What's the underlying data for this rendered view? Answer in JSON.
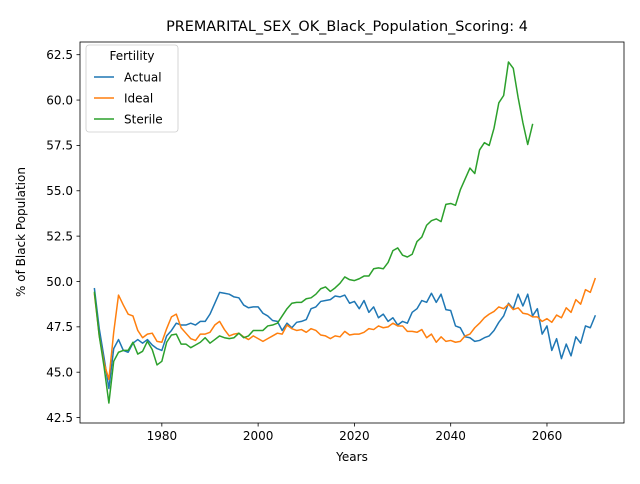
{
  "chart_data": {
    "type": "line",
    "title": "PREMARITAL_SEX_OK_Black_Population_Scoring: 4",
    "xlabel": "Years",
    "ylabel": "% of Black Population",
    "xlim": [
      1963,
      2076
    ],
    "ylim": [
      42.2,
      63.2
    ],
    "xticks": [
      1980,
      2000,
      2020,
      2040,
      2060
    ],
    "xtick_labels": [
      "1980",
      "2000",
      "2020",
      "2040",
      "2060"
    ],
    "yticks": [
      42.5,
      45.0,
      47.5,
      50.0,
      52.5,
      55.0,
      57.5,
      60.0,
      62.5
    ],
    "ytick_labels": [
      "42.5",
      "45.0",
      "47.5",
      "50.0",
      "52.5",
      "55.0",
      "57.5",
      "60.0",
      "62.5"
    ],
    "grid": false,
    "legend": {
      "title": "Fertility",
      "position": "top-left"
    },
    "series": [
      {
        "name": "Actual",
        "color": "#1f77b4",
        "start": 1966,
        "values": [
          49.6,
          47.4,
          45.8,
          44.1,
          46.3,
          46.8,
          46.2,
          46.1,
          46.6,
          46.8,
          46.6,
          46.8,
          46.5,
          46.3,
          46.2,
          47.0,
          47.3,
          47.7,
          47.6,
          47.6,
          47.7,
          47.6,
          47.8,
          47.8,
          48.2,
          48.8,
          49.4,
          49.35,
          49.3,
          49.15,
          49.1,
          48.7,
          48.55,
          48.6,
          48.6,
          48.25,
          48.1,
          47.85,
          47.8,
          47.3,
          47.7,
          47.45,
          47.75,
          47.8,
          47.9,
          48.5,
          48.6,
          48.9,
          48.95,
          49.0,
          49.2,
          49.15,
          49.25,
          48.8,
          48.9,
          48.5,
          48.95,
          48.3,
          48.6,
          48.0,
          48.2,
          47.8,
          48.0,
          47.6,
          47.8,
          47.7,
          48.3,
          48.5,
          48.95,
          48.85,
          49.35,
          48.85,
          49.3,
          48.45,
          48.4,
          47.55,
          47.45,
          46.95,
          46.9,
          46.7,
          46.75,
          46.9,
          47.0,
          47.3,
          47.75,
          48.1,
          48.8,
          48.5,
          49.3,
          48.65,
          49.3,
          48.1,
          48.5,
          47.1,
          47.55,
          46.2,
          46.85,
          45.75,
          46.55,
          45.9,
          46.95,
          46.6,
          47.55,
          47.45,
          48.1
        ]
      },
      {
        "name": "Ideal",
        "color": "#ff7f0e",
        "start": 1966,
        "values": [
          49.3,
          47.0,
          45.5,
          44.6,
          47.2,
          49.25,
          48.7,
          48.2,
          48.1,
          47.3,
          46.9,
          47.1,
          47.15,
          46.7,
          46.65,
          47.4,
          48.05,
          48.2,
          47.45,
          47.15,
          46.85,
          46.75,
          47.1,
          47.1,
          47.2,
          47.6,
          47.8,
          47.35,
          47.0,
          47.1,
          47.15,
          46.95,
          46.8,
          47.0,
          46.85,
          46.7,
          46.85,
          47.0,
          47.15,
          47.1,
          47.6,
          47.4,
          47.3,
          47.35,
          47.2,
          47.4,
          47.3,
          47.05,
          47.0,
          46.85,
          47.0,
          46.95,
          47.25,
          47.05,
          47.1,
          47.1,
          47.2,
          47.4,
          47.35,
          47.55,
          47.45,
          47.5,
          47.7,
          47.55,
          47.55,
          47.25,
          47.25,
          47.2,
          47.35,
          46.9,
          47.1,
          46.65,
          46.95,
          46.7,
          46.75,
          46.65,
          46.7,
          47.0,
          47.1,
          47.45,
          47.7,
          48.0,
          48.2,
          48.35,
          48.6,
          48.5,
          48.75,
          48.45,
          48.55,
          48.25,
          48.2,
          48.05,
          48.05,
          47.8,
          47.95,
          47.75,
          48.15,
          48.0,
          48.55,
          48.3,
          49.0,
          48.75,
          49.55,
          49.4,
          50.15
        ]
      },
      {
        "name": "Sterile",
        "color": "#2ca02c",
        "start": 1966,
        "values": [
          49.4,
          47.0,
          45.3,
          43.3,
          45.6,
          46.1,
          46.2,
          46.2,
          46.65,
          46.0,
          46.15,
          46.7,
          46.25,
          45.4,
          45.6,
          46.65,
          47.05,
          47.1,
          46.55,
          46.55,
          46.35,
          46.5,
          46.65,
          46.9,
          46.6,
          46.8,
          47.0,
          46.9,
          46.85,
          46.9,
          47.15,
          46.9,
          47.0,
          47.3,
          47.3,
          47.3,
          47.55,
          47.6,
          47.7,
          48.1,
          48.5,
          48.8,
          48.85,
          48.85,
          49.05,
          49.1,
          49.3,
          49.6,
          49.7,
          49.45,
          49.65,
          49.9,
          50.25,
          50.1,
          50.05,
          50.15,
          50.3,
          50.3,
          50.7,
          50.75,
          50.7,
          51.05,
          51.7,
          51.85,
          51.45,
          51.35,
          51.5,
          52.2,
          52.45,
          53.1,
          53.35,
          53.45,
          53.3,
          54.25,
          54.3,
          54.2,
          55.05,
          55.65,
          56.25,
          55.95,
          57.25,
          57.65,
          57.5,
          58.45,
          59.85,
          60.25,
          62.1,
          61.75,
          60.15,
          58.75,
          57.55,
          58.65
        ]
      }
    ]
  }
}
